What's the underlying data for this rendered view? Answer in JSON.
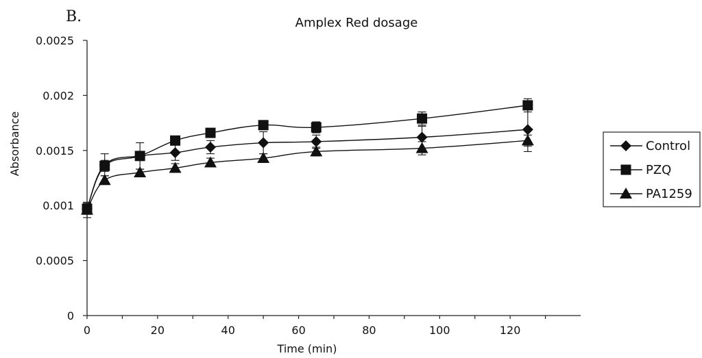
{
  "chart_data": {
    "type": "line",
    "panel_label": "B.",
    "title": "Amplex Red dosage",
    "xlabel": "Time (min)",
    "ylabel": "Absorbance",
    "xlim": [
      0,
      140
    ],
    "ylim": [
      0,
      0.0025
    ],
    "x_ticks": [
      0,
      20,
      40,
      60,
      80,
      100,
      120
    ],
    "x_tick_labels": [
      "0",
      "20",
      "40",
      "60",
      "80",
      "100",
      "120"
    ],
    "y_ticks": [
      0,
      0.0005,
      0.001,
      0.0015,
      0.002,
      0.0025
    ],
    "y_tick_labels": [
      "0",
      "0.0005",
      "0.001",
      "0.0015",
      "0.002",
      "0.0025"
    ],
    "grid": false,
    "legend_position": "right",
    "x": [
      0,
      5,
      15,
      25,
      35,
      50,
      65,
      95,
      125
    ],
    "series": [
      {
        "name": "Control",
        "marker": "diamond",
        "values": [
          0.00097,
          0.00137,
          0.00145,
          0.00148,
          0.00153,
          0.00157,
          0.00158,
          0.00162,
          0.00169
        ],
        "errors": [
          5e-05,
          0.0001,
          0.00012,
          7e-05,
          6e-05,
          0.0001,
          6e-05,
          0.0001,
          0.0002
        ]
      },
      {
        "name": "PZQ",
        "marker": "square",
        "values": [
          0.00097,
          0.00136,
          0.00145,
          0.00159,
          0.00166,
          0.00173,
          0.00171,
          0.00179,
          0.00191
        ],
        "errors": [
          5e-05,
          5e-05,
          4e-05,
          4e-05,
          4e-05,
          4e-05,
          5e-05,
          6e-05,
          6e-05
        ]
      },
      {
        "name": "PA1259",
        "marker": "triangle",
        "values": [
          0.00096,
          0.00123,
          0.0013,
          0.00134,
          0.00139,
          0.00143,
          0.00149,
          0.00152,
          0.00159
        ],
        "errors": [
          7e-05,
          4e-05,
          3e-05,
          4e-05,
          4e-05,
          4e-05,
          4e-05,
          6e-05,
          5e-05
        ]
      }
    ]
  }
}
